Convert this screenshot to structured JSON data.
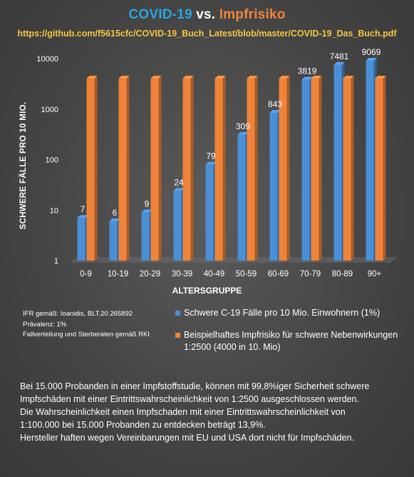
{
  "header": {
    "title_part1": "COVID-19",
    "title_part2": " vs. ",
    "title_part3": "Impfrisiko",
    "source_url": "https://github.com/f5615cfc/COVID-19_Buch_Latest/blob/master/COVID-19_Das_Buch.pdf"
  },
  "notes": [
    "IFR gemäß: Ioanidis, BLT.20.265892",
    "Prävalenz: 1%",
    "Fallverteilung und Sterberaten gemäß RKI"
  ],
  "footer_lines": [
    "Bei 15.000  Probanden in einer Impfstoffstudie, können mit 99,8%iger Sicherheit schwere",
    "Impfschäden mit einer Eintrittswahrscheinlichkeit von 1:2500 ausgeschlossen werden.",
    "Die Wahrscheinlichkeit einen Impfschaden mit einer Eintrittswahrscheinlichkeit von",
    "1:100.000  bei 15.000  Probanden zu entdecken beträgt 13,9%.",
    "Hersteller haften wegen Vereinbarungen mit EU und USA dort nicht für Impfschäden."
  ],
  "chart_data": {
    "type": "bar",
    "title": "COVID-19 vs. Impfrisiko",
    "xlabel": "ALTERSGRUPPE",
    "ylabel": "SCHWERE FÄLLE PRO 10 MIO.",
    "yscale": "log",
    "ylim": [
      1,
      10000
    ],
    "yticks": [
      "1",
      "10",
      "100",
      "1000",
      "10000"
    ],
    "categories": [
      "0-9",
      "10-19",
      "20-29",
      "30-39",
      "40-49",
      "50-59",
      "60-69",
      "70-79",
      "80-89",
      "90+"
    ],
    "series": [
      {
        "name": "Schwere C-19 Fälle pro 10 Mio. Einwohnern (1%)",
        "color": "#4a8fd6",
        "values": [
          7,
          6,
          9,
          24,
          79,
          309,
          843,
          3819,
          7481,
          9069
        ],
        "labels": [
          "7",
          "6",
          "9",
          "24",
          "79",
          "309",
          "843",
          "3819",
          "7481",
          "9069"
        ]
      },
      {
        "name": "Beispielhaftes Impfrisiko für schwere Nebenwirkungen 1:2500 (4000 in 10. Mio)",
        "color": "#f0833a",
        "values": [
          4000,
          4000,
          4000,
          4000,
          4000,
          4000,
          4000,
          4000,
          4000,
          4000
        ]
      }
    ],
    "legend_position": "bottom-right",
    "grid": false
  }
}
